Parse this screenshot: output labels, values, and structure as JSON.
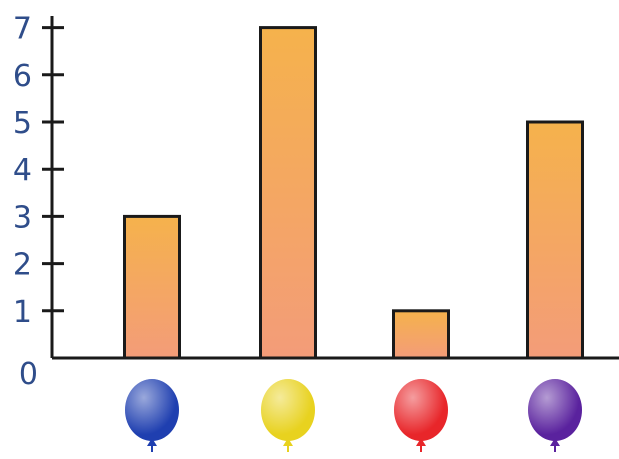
{
  "chart_data": {
    "type": "bar",
    "title": "",
    "xlabel": "",
    "ylabel": "",
    "categories": [
      "blue-balloon-icon",
      "yellow-balloon-icon",
      "red-balloon-icon",
      "purple-balloon-icon"
    ],
    "values": [
      3,
      7,
      1,
      5
    ],
    "ylim": [
      0,
      7
    ],
    "yticks": [
      "0",
      "1",
      "2",
      "3",
      "4",
      "5",
      "6",
      "7"
    ],
    "grid": false,
    "legend": "none",
    "bar_gradient": [
      "#f5b24c",
      "#f39c79"
    ],
    "bar_stroke": "#1a1a1a",
    "axis_color": "#1a1a1a",
    "tick_label_color": "#2f4d8a",
    "balloon_colors": [
      "#1f3fb0",
      "#e8d21f",
      "#e8262a",
      "#5a229e"
    ]
  }
}
